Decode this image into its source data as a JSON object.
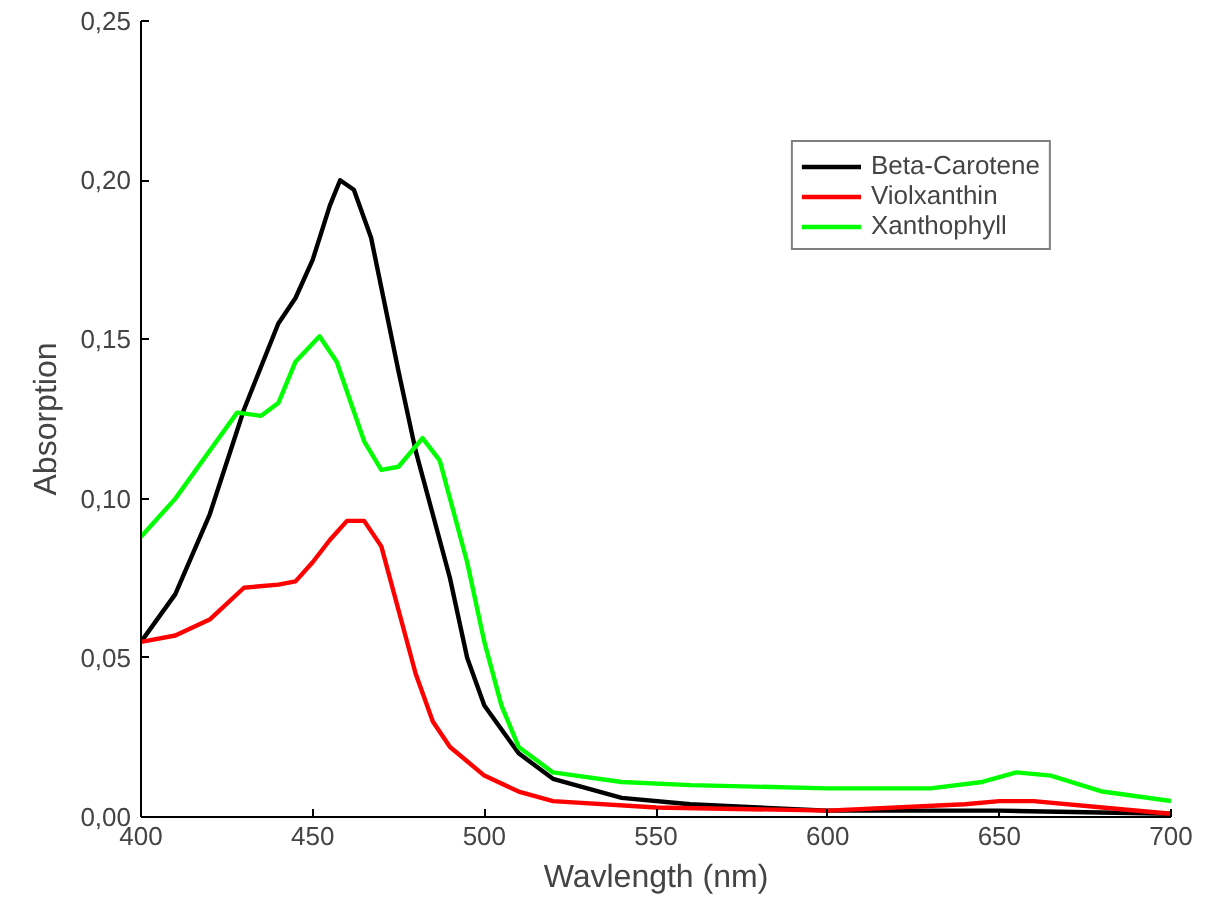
{
  "chart_data": {
    "type": "line",
    "xlabel": "Wavlength (nm)",
    "ylabel": "Absorption",
    "xlim": [
      400,
      700
    ],
    "xticks": [
      400,
      450,
      500,
      550,
      600,
      650,
      700
    ],
    "ylim": [
      0,
      0.25
    ],
    "yticks": [
      {
        "value": 0,
        "label": "0,00"
      },
      {
        "value": 0.05,
        "label": "0,05"
      },
      {
        "value": 0.1,
        "label": "0,10"
      },
      {
        "value": 0.15,
        "label": "0,15"
      },
      {
        "value": 0.2,
        "label": "0,20"
      },
      {
        "value": 0.25,
        "label": "0,25"
      }
    ],
    "grid": false,
    "legend": "top right",
    "marker": "none",
    "line_style": "solid",
    "series": [
      {
        "name": "Beta-Carotene",
        "color": "#000000",
        "x": [
          400,
          410,
          420,
          430,
          440,
          445,
          450,
          455,
          458,
          462,
          467,
          475,
          480,
          485,
          490,
          495,
          500,
          510,
          520,
          540,
          560,
          600,
          650,
          700
        ],
        "values": [
          0.055,
          0.07,
          0.095,
          0.128,
          0.155,
          0.163,
          0.175,
          0.192,
          0.2,
          0.197,
          0.182,
          0.14,
          0.115,
          0.095,
          0.075,
          0.05,
          0.035,
          0.02,
          0.012,
          0.006,
          0.004,
          0.002,
          0.002,
          0.001
        ]
      },
      {
        "name": "Violxanthin",
        "color": "#ff0000",
        "x": [
          400,
          410,
          420,
          430,
          440,
          445,
          450,
          455,
          460,
          465,
          470,
          475,
          480,
          485,
          490,
          500,
          510,
          520,
          550,
          600,
          640,
          650,
          660,
          680,
          700
        ],
        "values": [
          0.055,
          0.057,
          0.062,
          0.072,
          0.073,
          0.074,
          0.08,
          0.087,
          0.093,
          0.093,
          0.085,
          0.065,
          0.045,
          0.03,
          0.022,
          0.013,
          0.008,
          0.005,
          0.003,
          0.002,
          0.004,
          0.005,
          0.005,
          0.003,
          0.001
        ]
      },
      {
        "name": "Xanthophyll",
        "color": "#00ff00",
        "x": [
          400,
          410,
          420,
          428,
          435,
          440,
          445,
          452,
          457,
          465,
          470,
          475,
          482,
          487,
          495,
          500,
          505,
          510,
          520,
          540,
          560,
          600,
          630,
          645,
          655,
          665,
          680,
          700
        ],
        "values": [
          0.088,
          0.1,
          0.115,
          0.127,
          0.126,
          0.13,
          0.143,
          0.151,
          0.143,
          0.118,
          0.109,
          0.11,
          0.119,
          0.112,
          0.08,
          0.055,
          0.035,
          0.022,
          0.014,
          0.011,
          0.01,
          0.009,
          0.009,
          0.011,
          0.014,
          0.013,
          0.008,
          0.005
        ]
      }
    ]
  }
}
